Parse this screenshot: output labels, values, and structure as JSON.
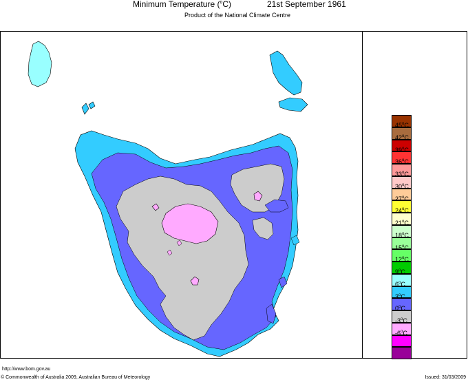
{
  "header": {
    "title": "Minimum Temperature (°C)",
    "title_prefix": "Minimum Temperature (",
    "title_degree": "o",
    "title_suffix": "C)",
    "date": "21st September 1961",
    "subtitle": "Product of the National Climate Centre"
  },
  "legend": {
    "items": [
      {
        "label": "45",
        "color": "#993300"
      },
      {
        "label": "42",
        "color": "#a86c3e"
      },
      {
        "label": "39",
        "color": "#cc0000"
      },
      {
        "label": "36",
        "color": "#ff3333"
      },
      {
        "label": "33",
        "color": "#ff9999"
      },
      {
        "label": "30",
        "color": "#ffc9c9"
      },
      {
        "label": "27",
        "color": "#ffcc99"
      },
      {
        "label": "24",
        "color": "#ffff33"
      },
      {
        "label": "21",
        "color": "#ffffcc"
      },
      {
        "label": "18",
        "color": "#ccffcc"
      },
      {
        "label": "15",
        "color": "#99ff99"
      },
      {
        "label": "12",
        "color": "#66ff66"
      },
      {
        "label": "9",
        "color": "#00cc00"
      },
      {
        "label": "6",
        "color": "#99ffff"
      },
      {
        "label": "3",
        "color": "#33ccff"
      },
      {
        "label": "0",
        "color": "#6666ff"
      },
      {
        "label": "-3",
        "color": "#cccccc"
      },
      {
        "label": "-6",
        "color": "#ffaaff"
      },
      {
        "label": "",
        "color": "#ff00ff"
      },
      {
        "label": "",
        "color": "#990099"
      }
    ],
    "unit": "°C"
  },
  "colors": {
    "band_3_6": "#33ccff",
    "band_0_3": "#6666ff",
    "band_m3_0": "#cccccc",
    "band_m6_m3": "#ffaaff",
    "band_6_9": "#99ffff"
  },
  "footer": {
    "url": "http://www.bom.gov.au",
    "copyright": "© Commonwealth of Australia 2009, Australian Bureau of Meteorology",
    "issued": "Issued: 31/03/2009"
  }
}
